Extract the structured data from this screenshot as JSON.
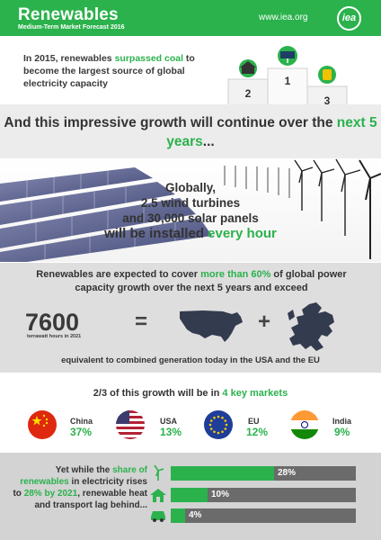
{
  "header": {
    "title": "Renewables",
    "subtitle": "Medium-Term Market Forecast 2016",
    "url": "www.iea.org",
    "logo": "iea"
  },
  "intro": {
    "pre": "In 2015, renewables ",
    "highlight": "surpassed coal",
    "post": " to become the largest source of global electricity capacity"
  },
  "podium": {
    "places": [
      "2",
      "1",
      "3"
    ],
    "icons": [
      "coal-plant-icon",
      "solar-panel-icon",
      "gas-canister-icon"
    ]
  },
  "growth": {
    "pre": "And this impressive growth will continue over the ",
    "highlight": "next 5 years",
    "post": "..."
  },
  "hourly": {
    "line1": "Globally,",
    "line2": "2.5 wind turbines",
    "line3": "and 30,000 solar panels",
    "line4_pre": "will be installed ",
    "line4_highlight": "every hour"
  },
  "capacity": {
    "pre": "Renewables are expected to cover ",
    "highlight": "more than 60%",
    "post": " of global power capacity growth over the next 5 years and exceed",
    "value": "7600",
    "unit": "terrawatt hours in 2021",
    "equals": "=",
    "plus": "+",
    "equivalent": "equivalent to combined generation today in the USA and the EU"
  },
  "markets": {
    "title_pre": "2/3 of this growth will be in ",
    "title_highlight": "4 key markets",
    "items": [
      {
        "name": "China",
        "share": "37%",
        "icon": "china-flag-icon"
      },
      {
        "name": "USA",
        "share": "13%",
        "icon": "usa-flag-icon"
      },
      {
        "name": "EU",
        "share": "12%",
        "icon": "eu-flag-icon"
      },
      {
        "name": "India",
        "share": "9%",
        "icon": "india-flag-icon"
      }
    ]
  },
  "shares": {
    "t1": "Yet while the ",
    "h1": "share of renewables",
    "t2": " in electricity rises to ",
    "h2": "28% by 2021",
    "t3": ", renewable heat and transport lag behind...",
    "bars": [
      {
        "label": "28%",
        "value": 28,
        "icon": "wind-turbine-icon"
      },
      {
        "label": "10%",
        "value": 10,
        "icon": "house-icon"
      },
      {
        "label": "4%",
        "value": 4,
        "icon": "car-icon"
      }
    ]
  },
  "colors": {
    "accent": "#2bb24c",
    "bar": "#6b6b6b",
    "band": "#ececec",
    "grey": "#dedede",
    "bottom": "#d3d3d3"
  }
}
